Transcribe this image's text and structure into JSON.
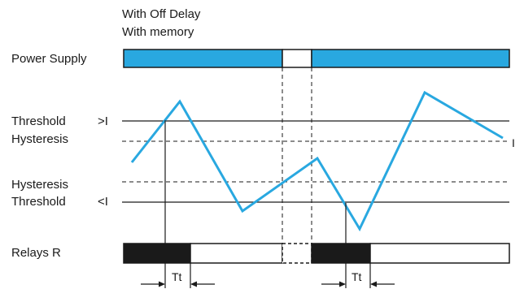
{
  "header": {
    "line1": "With Off Delay",
    "line2": "With memory"
  },
  "rows": {
    "power_supply": "Power Supply",
    "threshold_high": "Threshold",
    "threshold_high_symbol": ">I",
    "hysteresis_high": "Hysteresis",
    "hysteresis_low": "Hysteresis",
    "threshold_low": "Threshold",
    "threshold_low_symbol": "<I",
    "relays": "Relays R"
  },
  "signal_label": "I",
  "delay_label": "Tt",
  "colors": {
    "supply_fill": "#29a8e0",
    "signal_line": "#29a8e0",
    "relay_on": "#1a1a1a",
    "relay_off": "#ffffff",
    "text": "#1a1a1a"
  }
}
